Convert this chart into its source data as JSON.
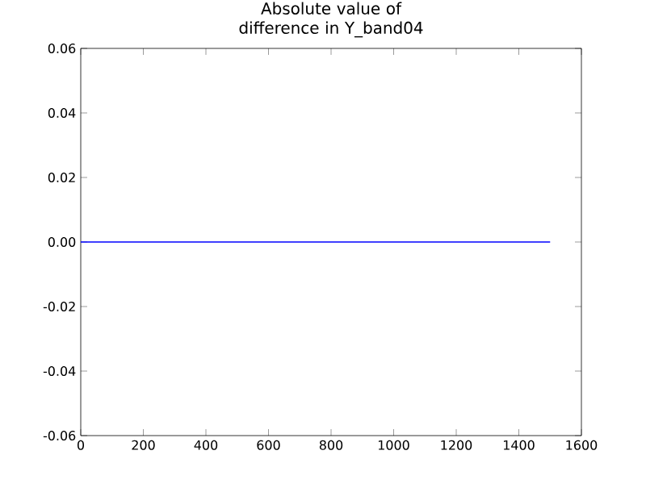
{
  "chart_data": {
    "type": "line",
    "title": "Absolute value of difference in Y_band04",
    "x": [
      0,
      1500
    ],
    "series": [
      {
        "color": "#0000ff",
        "values": [
          0,
          0
        ]
      }
    ],
    "xlim": [
      0,
      1600
    ],
    "xticks": [
      0,
      200,
      400,
      600,
      800,
      1000,
      1200,
      1400,
      1600
    ],
    "ylim": [
      -0.06,
      0.06
    ],
    "yticks": [
      {
        "value": -0.06,
        "label": "-0.06"
      },
      {
        "value": -0.04,
        "label": "-0.04"
      },
      {
        "value": -0.02,
        "label": "-0.02"
      },
      {
        "value": 0,
        "label": "0.00"
      },
      {
        "value": 0.02,
        "label": "0.02"
      },
      {
        "value": 0.04,
        "label": "0.04"
      },
      {
        "value": 0.06,
        "label": "0.06"
      }
    ],
    "grid": false,
    "marker": "none",
    "line_style": "solid"
  }
}
